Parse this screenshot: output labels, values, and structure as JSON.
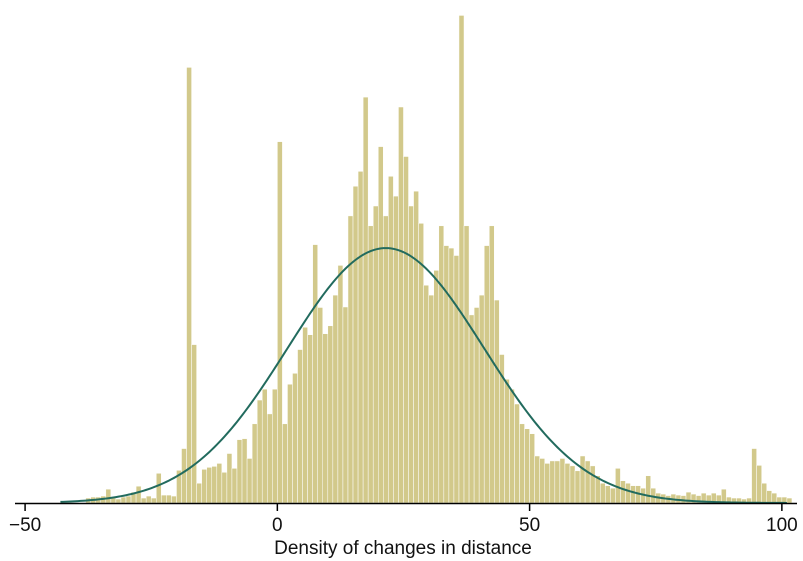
{
  "chart_data": {
    "type": "bar",
    "title": "",
    "xlabel": "Density of changes in distance",
    "ylabel": "",
    "xlim": [
      -52,
      103
    ],
    "ylim": [
      0,
      1
    ],
    "grid": false,
    "legend": "none",
    "x_ticks": [
      {
        "value": -50,
        "label": "−50"
      },
      {
        "value": 0,
        "label": "0"
      },
      {
        "value": 50,
        "label": "50"
      },
      {
        "value": 100,
        "label": "100"
      }
    ],
    "bin_width": 1,
    "series": [
      {
        "type": "histogram",
        "color": "#d2c98b",
        "bins": [
          [
            -38,
            0.01
          ],
          [
            -37,
            0.012
          ],
          [
            -36,
            0.012
          ],
          [
            -35,
            0.014
          ],
          [
            -34,
            0.028
          ],
          [
            -33,
            0.01
          ],
          [
            -32,
            0.008
          ],
          [
            -31,
            0.012
          ],
          [
            -30,
            0.014
          ],
          [
            -29,
            0.022
          ],
          [
            -28,
            0.034
          ],
          [
            -27,
            0.01
          ],
          [
            -26,
            0.014
          ],
          [
            -25,
            0.01
          ],
          [
            -24,
            0.06
          ],
          [
            -23,
            0.016
          ],
          [
            -22,
            0.016
          ],
          [
            -21,
            0.014
          ],
          [
            -20,
            0.066
          ],
          [
            -19,
            0.11
          ],
          [
            -18,
            0.88
          ],
          [
            -17,
            0.32
          ],
          [
            -16,
            0.04
          ],
          [
            -15,
            0.068
          ],
          [
            -14,
            0.072
          ],
          [
            -13,
            0.074
          ],
          [
            -12,
            0.08
          ],
          [
            -11,
            0.062
          ],
          [
            -10,
            0.1
          ],
          [
            -9,
            0.07
          ],
          [
            -8,
            0.128
          ],
          [
            -7,
            0.13
          ],
          [
            -6,
            0.09
          ],
          [
            -5,
            0.16
          ],
          [
            -4,
            0.208
          ],
          [
            -3,
            0.23
          ],
          [
            -2,
            0.18
          ],
          [
            -1,
            0.23
          ],
          [
            0,
            0.73
          ],
          [
            1,
            0.16
          ],
          [
            2,
            0.24
          ],
          [
            3,
            0.262
          ],
          [
            4,
            0.31
          ],
          [
            5,
            0.355
          ],
          [
            6,
            0.34
          ],
          [
            7,
            0.522
          ],
          [
            8,
            0.395
          ],
          [
            9,
            0.342
          ],
          [
            10,
            0.358
          ],
          [
            11,
            0.42
          ],
          [
            12,
            0.48
          ],
          [
            13,
            0.396
          ],
          [
            14,
            0.58
          ],
          [
            15,
            0.64
          ],
          [
            16,
            0.67
          ],
          [
            17,
            0.82
          ],
          [
            18,
            0.56
          ],
          [
            19,
            0.6
          ],
          [
            20,
            0.72
          ],
          [
            21,
            0.58
          ],
          [
            22,
            0.66
          ],
          [
            23,
            0.62
          ],
          [
            24,
            0.8
          ],
          [
            25,
            0.7
          ],
          [
            26,
            0.6
          ],
          [
            27,
            0.63
          ],
          [
            28,
            0.565
          ],
          [
            29,
            0.44
          ],
          [
            30,
            0.42
          ],
          [
            31,
            0.47
          ],
          [
            32,
            0.56
          ],
          [
            33,
            0.52
          ],
          [
            34,
            0.515
          ],
          [
            35,
            0.5
          ],
          [
            36,
            0.985
          ],
          [
            37,
            0.56
          ],
          [
            38,
            0.38
          ],
          [
            39,
            0.395
          ],
          [
            40,
            0.42
          ],
          [
            41,
            0.52
          ],
          [
            42,
            0.56
          ],
          [
            43,
            0.41
          ],
          [
            44,
            0.3
          ],
          [
            45,
            0.25
          ],
          [
            46,
            0.23
          ],
          [
            47,
            0.2
          ],
          [
            48,
            0.16
          ],
          [
            49,
            0.15
          ],
          [
            50,
            0.14
          ],
          [
            51,
            0.095
          ],
          [
            52,
            0.09
          ],
          [
            53,
            0.08
          ],
          [
            54,
            0.085
          ],
          [
            55,
            0.085
          ],
          [
            56,
            0.09
          ],
          [
            57,
            0.08
          ],
          [
            58,
            0.075
          ],
          [
            59,
            0.065
          ],
          [
            60,
            0.095
          ],
          [
            61,
            0.085
          ],
          [
            62,
            0.075
          ],
          [
            63,
            0.055
          ],
          [
            64,
            0.04
          ],
          [
            65,
            0.035
          ],
          [
            66,
            0.03
          ],
          [
            67,
            0.07
          ],
          [
            68,
            0.045
          ],
          [
            69,
            0.04
          ],
          [
            70,
            0.035
          ],
          [
            71,
            0.035
          ],
          [
            72,
            0.03
          ],
          [
            73,
            0.055
          ],
          [
            74,
            0.03
          ],
          [
            75,
            0.02
          ],
          [
            76,
            0.018
          ],
          [
            77,
            0.015
          ],
          [
            78,
            0.018
          ],
          [
            79,
            0.016
          ],
          [
            80,
            0.015
          ],
          [
            81,
            0.022
          ],
          [
            82,
            0.018
          ],
          [
            83,
            0.015
          ],
          [
            84,
            0.02
          ],
          [
            85,
            0.016
          ],
          [
            86,
            0.02
          ],
          [
            87,
            0.016
          ],
          [
            88,
            0.028
          ],
          [
            89,
            0.012
          ],
          [
            90,
            0.01
          ],
          [
            91,
            0.01
          ],
          [
            92,
            0.008
          ],
          [
            93,
            0.01
          ],
          [
            94,
            0.11
          ],
          [
            95,
            0.076
          ],
          [
            96,
            0.04
          ],
          [
            97,
            0.025
          ],
          [
            98,
            0.02
          ],
          [
            99,
            0.012
          ],
          [
            100,
            0.012
          ],
          [
            101,
            0.01
          ]
        ]
      },
      {
        "type": "density-curve",
        "color": "#226b5e",
        "mean": 21.5,
        "sd": 19.5,
        "peak": 0.515,
        "x_range": [
          -43,
          101
        ]
      }
    ]
  }
}
